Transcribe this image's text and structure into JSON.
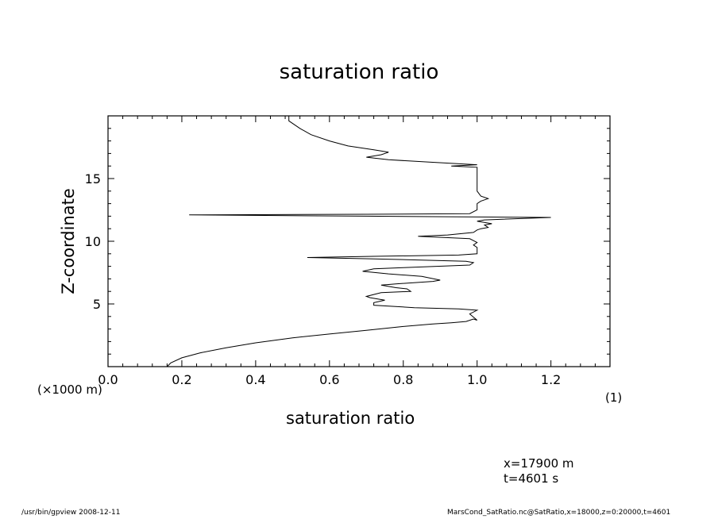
{
  "chart_data": {
    "type": "line",
    "title": "saturation ratio",
    "xlabel": "saturation ratio",
    "ylabel": "Z-coordinate",
    "x_unit_label": "(1)",
    "y_unit_label": "(×1000 m)",
    "xlim": [
      0,
      1.36
    ],
    "ylim": [
      0,
      20
    ],
    "xticks": [
      0.0,
      0.2,
      0.4,
      0.6,
      0.8,
      1.0,
      1.2
    ],
    "xtick_labels": [
      "0.0",
      "0.2",
      "0.4",
      "0.6",
      "0.8",
      "1.0",
      "1.2"
    ],
    "yticks": [
      5,
      10,
      15
    ],
    "ytick_labels": [
      "5",
      "10",
      "15"
    ],
    "grid": false,
    "series": [
      {
        "points": [
          [
            0.16,
            0.0
          ],
          [
            0.17,
            0.3
          ],
          [
            0.2,
            0.7
          ],
          [
            0.25,
            1.1
          ],
          [
            0.32,
            1.5
          ],
          [
            0.4,
            1.9
          ],
          [
            0.5,
            2.3
          ],
          [
            0.6,
            2.6
          ],
          [
            0.7,
            2.9
          ],
          [
            0.8,
            3.2
          ],
          [
            0.88,
            3.4
          ],
          [
            0.93,
            3.5
          ],
          [
            0.97,
            3.6
          ],
          [
            0.99,
            3.8
          ],
          [
            1.0,
            3.7
          ],
          [
            0.98,
            4.2
          ],
          [
            1.0,
            4.5
          ],
          [
            0.95,
            4.6
          ],
          [
            0.83,
            4.7
          ],
          [
            0.72,
            4.9
          ],
          [
            0.72,
            5.1
          ],
          [
            0.75,
            5.3
          ],
          [
            0.71,
            5.5
          ],
          [
            0.7,
            5.6
          ],
          [
            0.74,
            5.9
          ],
          [
            0.82,
            6.0
          ],
          [
            0.81,
            6.2
          ],
          [
            0.78,
            6.3
          ],
          [
            0.76,
            6.4
          ],
          [
            0.74,
            6.5
          ],
          [
            0.78,
            6.6
          ],
          [
            0.88,
            6.8
          ],
          [
            0.9,
            6.9
          ],
          [
            0.85,
            7.2
          ],
          [
            0.76,
            7.4
          ],
          [
            0.69,
            7.6
          ],
          [
            0.72,
            7.8
          ],
          [
            0.8,
            7.9
          ],
          [
            0.98,
            8.1
          ],
          [
            0.99,
            8.3
          ],
          [
            0.97,
            8.4
          ],
          [
            0.85,
            8.5
          ],
          [
            0.71,
            8.6
          ],
          [
            0.54,
            8.7
          ],
          [
            0.72,
            8.8
          ],
          [
            0.95,
            8.9
          ],
          [
            1.0,
            9.0
          ],
          [
            1.0,
            9.5
          ],
          [
            0.99,
            9.7
          ],
          [
            1.0,
            9.9
          ],
          [
            0.98,
            10.2
          ],
          [
            0.84,
            10.4
          ],
          [
            0.92,
            10.5
          ],
          [
            0.99,
            10.7
          ],
          [
            1.0,
            10.9
          ],
          [
            1.01,
            11.0
          ],
          [
            1.03,
            11.1
          ],
          [
            1.02,
            11.3
          ],
          [
            1.04,
            11.4
          ],
          [
            1.0,
            11.6
          ],
          [
            1.02,
            11.7
          ],
          [
            1.2,
            11.9
          ],
          [
            0.7,
            12.0
          ],
          [
            0.22,
            12.1
          ],
          [
            0.7,
            12.15
          ],
          [
            0.98,
            12.2
          ],
          [
            1.0,
            12.5
          ],
          [
            1.0,
            13.0
          ],
          [
            1.01,
            13.2
          ],
          [
            1.03,
            13.4
          ],
          [
            1.01,
            13.6
          ],
          [
            1.0,
            14.0
          ],
          [
            1.0,
            15.0
          ],
          [
            1.0,
            15.5
          ],
          [
            1.0,
            15.9
          ],
          [
            0.93,
            16.0
          ],
          [
            1.0,
            16.1
          ],
          [
            0.88,
            16.3
          ],
          [
            0.76,
            16.5
          ],
          [
            0.7,
            16.7
          ],
          [
            0.74,
            16.9
          ],
          [
            0.76,
            17.1
          ],
          [
            0.72,
            17.3
          ],
          [
            0.65,
            17.6
          ],
          [
            0.6,
            18.0
          ],
          [
            0.55,
            18.5
          ],
          [
            0.52,
            19.0
          ],
          [
            0.49,
            19.6
          ],
          [
            0.49,
            20.0
          ]
        ]
      }
    ]
  },
  "annotations": {
    "x_position": "x=17900 m",
    "time": "t=4601 s"
  },
  "footer": {
    "left": "/usr/bin/gpview   2008-12-11",
    "right": "MarsCond_SatRatio.nc@SatRatio,x=18000,z=0:20000,t=4601"
  }
}
